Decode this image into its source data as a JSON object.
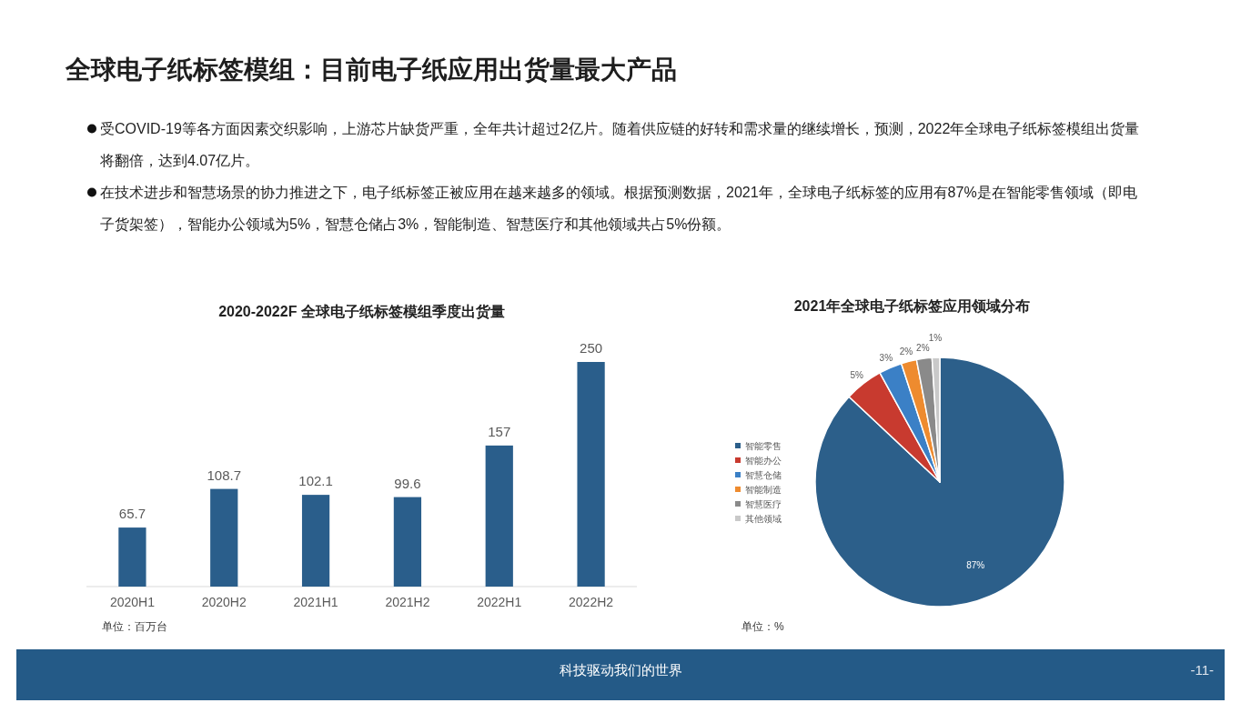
{
  "chart_data": [
    {
      "type": "other",
      "title": "全球电子纸标签模组：目前电子纸应用出货量最大产品",
      "annotations": [
        "受COVID-19等各方面因素交织影响，上游芯片缺货严重，全年共计超过2亿片。随着供应链的好转和需求量的继续增长，预测，2022年全球电子纸标签模组出货量将翻倍，达到4.07亿片。",
        "在技术进步和智慧场景的协力推进之下，电子纸标签正被应用在越来越多的领域。根据预测数据，2021年，全球电子纸标签的应用有87%是在智能零售领域（即电子货架签），智能办公领域为5%，智慧仓储占3%，智能制造、智慧医疗和其他领域共占5%份额。",
        "科技驱动我们的世界",
        "-11-"
      ]
    },
    {
      "type": "bar",
      "title": "2020-2022F 全球电子纸标签模组季度出货量",
      "categories": [
        "2020H1",
        "2020H2",
        "2021H1",
        "2021H2",
        "2022H1",
        "2022H2"
      ],
      "values": [
        65.7,
        108.7,
        102.1,
        99.6,
        157,
        250
      ],
      "color": "#2a5e8b",
      "data_labels": true,
      "annotations": [
        "单位：百万台"
      ]
    },
    {
      "type": "pie",
      "title": "2021年全球电子纸标签应用领域分布",
      "categories": [
        "智能零售",
        "智能办公",
        "智慧仓储",
        "智能制造",
        "智慧医疗",
        "其他领域"
      ],
      "values": [
        87,
        5,
        3,
        2,
        2,
        1
      ],
      "colors": [
        "#2c5f8a",
        "#c83a2f",
        "#3b80c6",
        "#ee8b2f",
        "#8a8a8a",
        "#c9c9c9"
      ],
      "value_labels": [
        "87%",
        "5%",
        "3%",
        "2%",
        "2%",
        "1%"
      ],
      "legend": "left",
      "annotations": [
        "单位：%"
      ]
    }
  ]
}
